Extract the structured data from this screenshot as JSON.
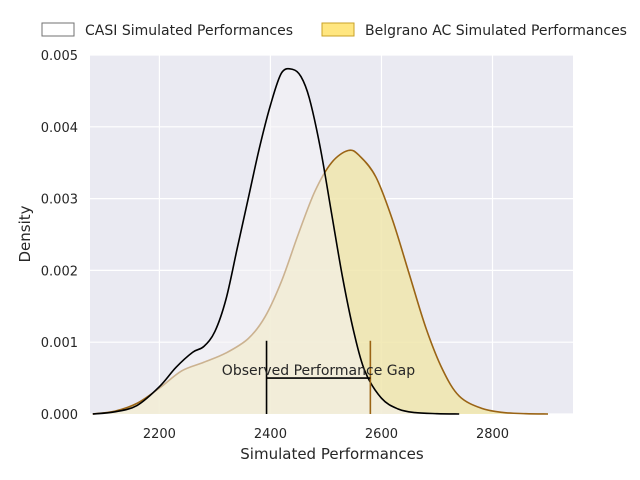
{
  "chart_data": {
    "type": "area",
    "title": "",
    "xlabel": "Simulated Performances",
    "ylabel": "Density",
    "xlim": [
      2075,
      2945
    ],
    "ylim": [
      0,
      0.005
    ],
    "x_ticks": [
      2200,
      2400,
      2600,
      2800
    ],
    "x_tick_labels": [
      "2200",
      "2400",
      "2600",
      "2800"
    ],
    "y_ticks": [
      0,
      0.001,
      0.002,
      0.003,
      0.004,
      0.005
    ],
    "y_tick_labels": [
      "0.000",
      "0.001",
      "0.002",
      "0.003",
      "0.004",
      "0.005"
    ],
    "grid": true,
    "background": "#eaeaf2",
    "legend_placement": "top, above plot",
    "series": [
      {
        "name": "CASI Simulated Performances",
        "fill": "none",
        "line_color": "#000000",
        "x": [
          2080,
          2120,
          2160,
          2200,
          2230,
          2260,
          2280,
          2300,
          2320,
          2340,
          2360,
          2380,
          2400,
          2420,
          2440,
          2455,
          2470,
          2490,
          2510,
          2530,
          2550,
          2570,
          2600,
          2630,
          2660,
          2700,
          2740
        ],
        "y": [
          0.0,
          3e-05,
          0.00012,
          0.00038,
          0.00065,
          0.00086,
          0.00094,
          0.00115,
          0.0016,
          0.0023,
          0.003,
          0.0037,
          0.0043,
          0.00475,
          0.0048,
          0.0047,
          0.0044,
          0.0037,
          0.0028,
          0.0019,
          0.00115,
          0.0006,
          0.00022,
          7e-05,
          2e-05,
          5e-06,
          0.0
        ]
      },
      {
        "name": "Belgrano AC Simulated Performances",
        "fill": "#f0e6ad",
        "line_color": "#9a6415",
        "x": [
          2080,
          2120,
          2160,
          2200,
          2240,
          2280,
          2320,
          2360,
          2390,
          2420,
          2450,
          2480,
          2510,
          2540,
          2560,
          2590,
          2620,
          2650,
          2680,
          2710,
          2740,
          2780,
          2820,
          2860,
          2900
        ],
        "y": [
          0.0,
          4e-05,
          0.00015,
          0.00036,
          0.0006,
          0.00072,
          0.00085,
          0.00105,
          0.00135,
          0.00185,
          0.0025,
          0.0031,
          0.0035,
          0.00367,
          0.0036,
          0.0033,
          0.0027,
          0.00195,
          0.0012,
          0.00062,
          0.00025,
          8e-05,
          2e-05,
          5e-06,
          0.0
        ]
      }
    ],
    "annotation": {
      "text": "Observed Performance Gap",
      "x_start": 2393,
      "x_end": 2580,
      "y_level": 0.0005,
      "cap_top": 0.00102
    }
  }
}
